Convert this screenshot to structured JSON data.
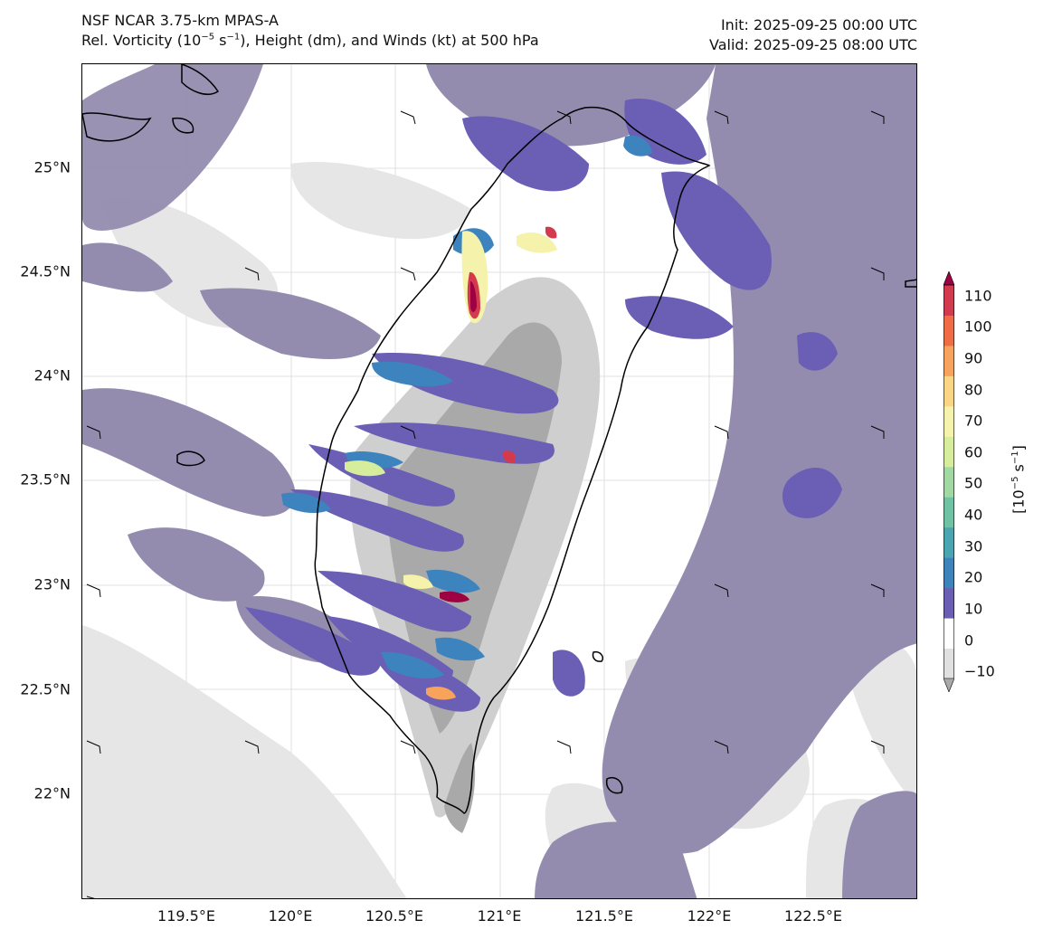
{
  "header": {
    "model": "NSF NCAR 3.75-km MPAS-A",
    "subtitle_pre": "Rel. Vorticity (10",
    "subtitle_exp": "−5",
    "subtitle_mid": " s",
    "subtitle_exp2": "−1",
    "subtitle_post": "), Height (dm), and Winds (kt) at 500 hPa",
    "init": "Init: 2025-09-25 00:00 UTC",
    "valid": "Valid: 2025-09-25 08:00 UTC"
  },
  "map": {
    "lat_labels": [
      "25°N",
      "24.5°N",
      "24°N",
      "23.5°N",
      "23°N",
      "22.5°N",
      "22°N"
    ],
    "lon_labels": [
      "119.5°E",
      "120°E",
      "120.5°E",
      "121°E",
      "121.5°E",
      "122°E",
      "122.5°E"
    ],
    "colors": {
      "weak_positive": "#948caf",
      "moderate_positive": "#6a5fb5",
      "strong_positive": "#3d84bf",
      "negative_light": "#e6e6e6",
      "negative_mid": "#cfcfcf",
      "negative_strong": "#a9a9a9",
      "coastline": "#000000"
    }
  },
  "colorbar": {
    "ticks": [
      "110",
      "100",
      "90",
      "80",
      "70",
      "60",
      "50",
      "40",
      "30",
      "20",
      "10",
      "0",
      "−10"
    ],
    "unit_pre": "[10",
    "unit_exp": "−5",
    "unit_mid": " s",
    "unit_exp2": "−1",
    "unit_post": "]",
    "colors": [
      "#a9a9a9",
      "#e0e0e0",
      "#ffffff",
      "#6a5fb5",
      "#3d84bf",
      "#4aa5b2",
      "#6ec3a4",
      "#a2d9a2",
      "#d6ee9b",
      "#f5f3ab",
      "#fbd484",
      "#f7a35c",
      "#ef6c44",
      "#d33a4d",
      "#9e0142"
    ]
  }
}
